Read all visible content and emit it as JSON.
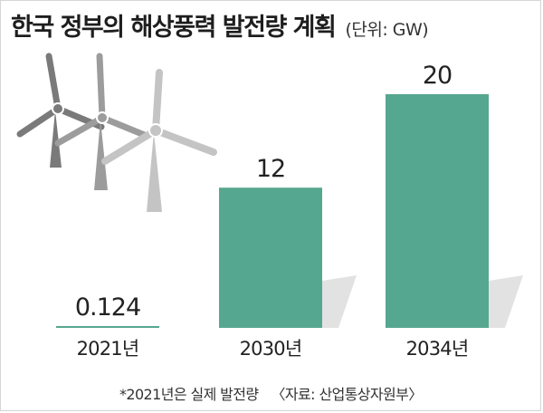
{
  "title": "한국 정부의 해상풍력 발전량 계획",
  "unit": "(단위: GW)",
  "footnote": "*2021년은 실제 발전량",
  "source": "〈자료: 산업통상자원부〉",
  "colors": {
    "bar": "#56a78f",
    "bar_shadow": "#e2e2e2",
    "axis": "#aaaaaa",
    "text": "#222222"
  },
  "icons": [
    "wind-turbine-icon",
    "wind-turbine-icon",
    "wind-turbine-icon"
  ],
  "chart_data": {
    "type": "bar",
    "title": "한국 정부의 해상풍력 발전량 계획",
    "unit": "GW",
    "categories": [
      "2021년",
      "2030년",
      "2034년"
    ],
    "values": [
      0.124,
      12,
      20
    ],
    "value_labels": [
      "0.124",
      "12",
      "20"
    ],
    "ylim": [
      0,
      20
    ],
    "grid": false,
    "legend": "none"
  }
}
